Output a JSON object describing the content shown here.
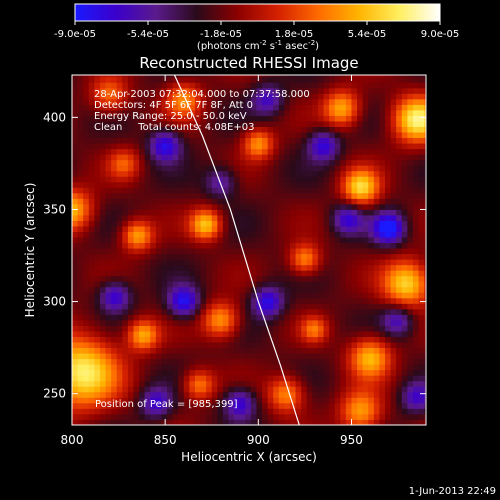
{
  "chart_data": {
    "type": "heatmap",
    "title": "Reconstructed RHESSI Image",
    "xlabel": "Heliocentric X (arcsec)",
    "ylabel": "Heliocentric Y (arcsec)",
    "xlim": [
      800,
      990
    ],
    "ylim": [
      233,
      423
    ],
    "x_ticks": [
      800,
      850,
      900,
      950
    ],
    "y_ticks": [
      250,
      300,
      350,
      400
    ],
    "colorbar": {
      "ticks": [
        "-9.0e-05",
        "-5.4e-05",
        "-1.8e-05",
        "1.8e-05",
        "5.4e-05",
        "9.0e-05"
      ],
      "range": [
        -9e-05,
        9e-05
      ],
      "units_prefix": "(photons cm",
      "units_sup1": "-2",
      "units_mid1": " s",
      "units_sup2": "-1",
      "units_mid2": " asec",
      "units_sup3": "-2",
      "units_suffix": ")",
      "colors": [
        "#1a1aff",
        "#3b00cc",
        "#5a1a8c",
        "#2a0a1a",
        "#8b0000",
        "#d42000",
        "#ff6a00",
        "#ffb400",
        "#ffef60",
        "#ffffff"
      ]
    },
    "annotations": [
      "28-Apr-2003 07:32:04.000 to 07:37:58.000",
      "Detectors: 4F 5F 6F 7F 8F, Att 0",
      "Energy Range: 25.0 - 50.0 keV",
      "Clean     Total counts: 4.08E+03"
    ],
    "peak_text": "Position of Peak = [985,399]",
    "peak": [
      985,
      399
    ],
    "limb_curve": [
      [
        855,
        423
      ],
      [
        870,
        390
      ],
      [
        885,
        350
      ],
      [
        900,
        300
      ],
      [
        912,
        265
      ],
      [
        922,
        233
      ]
    ],
    "sources": [
      {
        "x": 805,
        "y": 262,
        "v": 9e-05,
        "s": 14
      },
      {
        "x": 985,
        "y": 399,
        "v": 9e-05,
        "s": 9
      },
      {
        "x": 955,
        "y": 362,
        "v": 8e-05,
        "s": 7
      },
      {
        "x": 980,
        "y": 310,
        "v": 8.2e-05,
        "s": 9
      },
      {
        "x": 872,
        "y": 342,
        "v": 7.5e-05,
        "s": 6
      },
      {
        "x": 835,
        "y": 336,
        "v": 6.5e-05,
        "s": 6
      },
      {
        "x": 800,
        "y": 350,
        "v": 7e-05,
        "s": 8
      },
      {
        "x": 945,
        "y": 405,
        "v": 6.8e-05,
        "s": 7
      },
      {
        "x": 900,
        "y": 386,
        "v": 6e-05,
        "s": 6
      },
      {
        "x": 925,
        "y": 323,
        "v": 6e-05,
        "s": 6
      },
      {
        "x": 838,
        "y": 282,
        "v": 6.5e-05,
        "s": 6
      },
      {
        "x": 880,
        "y": 290,
        "v": 6.5e-05,
        "s": 7
      },
      {
        "x": 960,
        "y": 270,
        "v": 7e-05,
        "s": 8
      },
      {
        "x": 915,
        "y": 250,
        "v": 6e-05,
        "s": 7
      },
      {
        "x": 868,
        "y": 255,
        "v": 5.5e-05,
        "s": 6
      },
      {
        "x": 955,
        "y": 240,
        "v": 6.5e-05,
        "s": 8
      },
      {
        "x": 930,
        "y": 285,
        "v": 4.5e-05,
        "s": 5
      },
      {
        "x": 820,
        "y": 412,
        "v": 5e-05,
        "s": 7
      },
      {
        "x": 860,
        "y": 410,
        "v": 5.5e-05,
        "s": 7
      },
      {
        "x": 828,
        "y": 375,
        "v": 4e-05,
        "s": 6
      },
      {
        "x": 850,
        "y": 385,
        "v": -6e-05,
        "s": 6
      },
      {
        "x": 860,
        "y": 300,
        "v": -6.5e-05,
        "s": 6
      },
      {
        "x": 905,
        "y": 300,
        "v": -6e-05,
        "s": 6
      },
      {
        "x": 970,
        "y": 340,
        "v": -7.5e-05,
        "s": 6
      },
      {
        "x": 890,
        "y": 245,
        "v": -5.5e-05,
        "s": 6
      },
      {
        "x": 948,
        "y": 345,
        "v": -5e-05,
        "s": 6
      },
      {
        "x": 935,
        "y": 385,
        "v": -5.5e-05,
        "s": 6
      },
      {
        "x": 823,
        "y": 303,
        "v": -5.5e-05,
        "s": 6
      },
      {
        "x": 845,
        "y": 245,
        "v": -5e-05,
        "s": 6
      },
      {
        "x": 975,
        "y": 290,
        "v": -4.5e-05,
        "s": 6
      },
      {
        "x": 985,
        "y": 248,
        "v": -4.5e-05,
        "s": 6
      },
      {
        "x": 905,
        "y": 410,
        "v": -4.5e-05,
        "s": 6
      },
      {
        "x": 880,
        "y": 365,
        "v": -4e-05,
        "s": 6
      }
    ]
  },
  "footer_date": "1-Jun-2013 22:49"
}
